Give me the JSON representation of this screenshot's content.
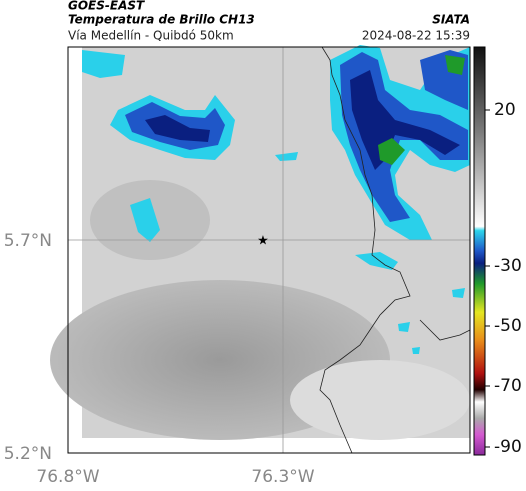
{
  "header": {
    "satellite": "GOES-EAST",
    "product": "Temperatura de Brillo CH13",
    "region": "Vía Medellín - Quibdó 50km",
    "source": "SIATA",
    "datetime": "2024-08-22 15:39"
  },
  "map": {
    "lat_labels": [
      "5.7°N",
      "5.2°N"
    ],
    "lon_labels": [
      "76.8°W",
      "76.3°W"
    ]
  },
  "colorbar": {
    "labels": [
      "20",
      "-30",
      "-50",
      "-70",
      "-90"
    ]
  }
}
